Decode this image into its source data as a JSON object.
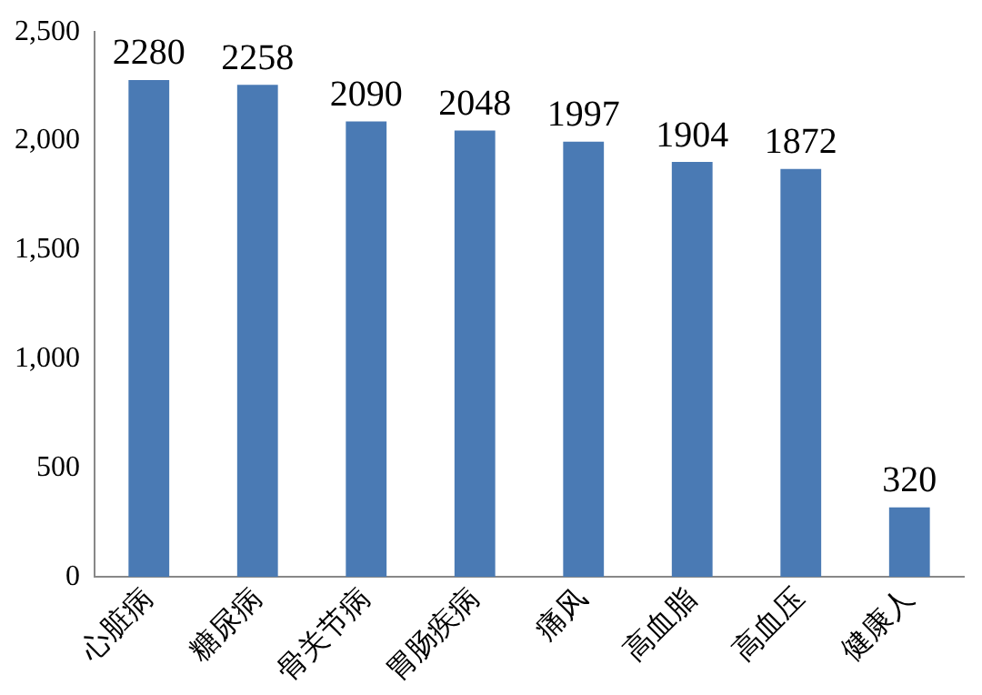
{
  "chart_data": {
    "type": "bar",
    "categories": [
      "心脏病",
      "糖尿病",
      "骨关节病",
      "胃肠疾病",
      "痛风",
      "高血脂",
      "高血压",
      "健康人"
    ],
    "values": [
      2280,
      2258,
      2090,
      2048,
      1997,
      1904,
      1872,
      320
    ],
    "color": "#4a7ab4",
    "ylim": [
      0,
      2500
    ],
    "yticks": [
      {
        "value": 0,
        "label": "0"
      },
      {
        "value": 500,
        "label": "500"
      },
      {
        "value": 1000,
        "label": "1,000"
      },
      {
        "value": 1500,
        "label": "1,500"
      },
      {
        "value": 2000,
        "label": "2,000"
      },
      {
        "value": 2500,
        "label": "2,500"
      }
    ],
    "grid": false,
    "legend": false,
    "data_labels": true
  }
}
